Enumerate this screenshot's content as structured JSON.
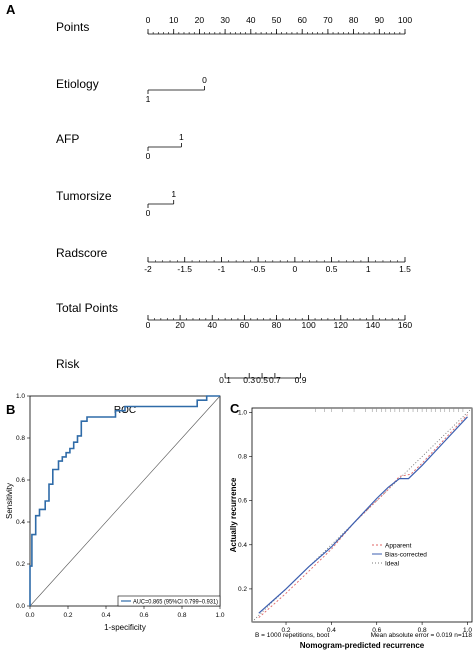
{
  "panels": {
    "a": "A",
    "b": "B",
    "c": "C"
  },
  "chart_data": [
    {
      "type": "nomogram",
      "rows": [
        {
          "label": "Points",
          "scale": "main",
          "ticks": [
            {
              "v": 0,
              "t": "0"
            },
            {
              "v": 10,
              "t": "10"
            },
            {
              "v": 20,
              "t": "20"
            },
            {
              "v": 30,
              "t": "30"
            },
            {
              "v": 40,
              "t": "40"
            },
            {
              "v": 50,
              "t": "50"
            },
            {
              "v": 60,
              "t": "60"
            },
            {
              "v": 70,
              "t": "70"
            },
            {
              "v": 80,
              "t": "80"
            },
            {
              "v": 90,
              "t": "90"
            },
            {
              "v": 100,
              "t": "100"
            }
          ]
        },
        {
          "label": "Etiology",
          "scale": "categorical",
          "levels": [
            {
              "level": "1",
              "points": 0
            },
            {
              "level": "0",
              "points": 22
            }
          ]
        },
        {
          "label": "AFP",
          "scale": "categorical",
          "levels": [
            {
              "level": "0",
              "points": 0
            },
            {
              "level": "1",
              "points": 13
            }
          ]
        },
        {
          "label": "Tumorsize",
          "scale": "categorical",
          "levels": [
            {
              "level": "0",
              "points": 0
            },
            {
              "level": "1",
              "points": 10
            }
          ]
        },
        {
          "label": "Radscore",
          "scale": "continuous",
          "ticks": [
            {
              "v": -2,
              "t": "-2",
              "points": 0
            },
            {
              "v": -1.5,
              "t": "-1.5",
              "points": 13.75
            },
            {
              "v": -1,
              "t": "-1",
              "points": 27.5
            },
            {
              "v": -0.5,
              "t": "-0.5",
              "points": 41.25
            },
            {
              "v": 0,
              "t": "0",
              "points": 55
            },
            {
              "v": 0.5,
              "t": "0.5",
              "points": 68.75
            },
            {
              "v": 1,
              "t": "1",
              "points": 82.5
            },
            {
              "v": 1.5,
              "t": "1.5",
              "points": 100
            }
          ]
        },
        {
          "label": "Total Points",
          "scale": "total",
          "ticks": [
            {
              "v": 0,
              "t": "0"
            },
            {
              "v": 20,
              "t": "20"
            },
            {
              "v": 40,
              "t": "40"
            },
            {
              "v": 60,
              "t": "60"
            },
            {
              "v": 80,
              "t": "80"
            },
            {
              "v": 100,
              "t": "100"
            },
            {
              "v": 120,
              "t": "120"
            },
            {
              "v": 140,
              "t": "140"
            },
            {
              "v": 160,
              "t": "160"
            }
          ]
        },
        {
          "label": "Risk",
          "scale": "risk",
          "ticks": [
            {
              "v": 0.1,
              "t": "0.1",
              "total": 48
            },
            {
              "v": 0.3,
              "t": "0.3",
              "total": 63
            },
            {
              "v": 0.5,
              "t": "0.5",
              "total": 71
            },
            {
              "v": 0.7,
              "t": "0.7",
              "total": 79
            },
            {
              "v": 0.9,
              "t": "0.9",
              "total": 95
            }
          ]
        }
      ]
    },
    {
      "type": "line",
      "title": "ROC",
      "xlabel": "1-specificity",
      "ylabel": "Sensitivity",
      "xlim": [
        0,
        1
      ],
      "ylim": [
        0,
        1
      ],
      "xticks": [
        "0.0",
        "0.2",
        "0.4",
        "0.6",
        "0.8",
        "1.0"
      ],
      "yticks": [
        "0.0",
        "0.2",
        "0.4",
        "0.6",
        "0.8",
        "1.0"
      ],
      "legend": "AUC=0.865 (95%CI 0.799~0.931)",
      "legend_position": "bottom-right",
      "curve": [
        [
          0,
          0
        ],
        [
          0,
          0.19
        ],
        [
          0.01,
          0.19
        ],
        [
          0.01,
          0.34
        ],
        [
          0.03,
          0.34
        ],
        [
          0.03,
          0.43
        ],
        [
          0.05,
          0.43
        ],
        [
          0.05,
          0.46
        ],
        [
          0.08,
          0.46
        ],
        [
          0.08,
          0.5
        ],
        [
          0.1,
          0.5
        ],
        [
          0.1,
          0.58
        ],
        [
          0.12,
          0.58
        ],
        [
          0.12,
          0.65
        ],
        [
          0.15,
          0.65
        ],
        [
          0.15,
          0.69
        ],
        [
          0.17,
          0.69
        ],
        [
          0.17,
          0.71
        ],
        [
          0.19,
          0.71
        ],
        [
          0.19,
          0.73
        ],
        [
          0.21,
          0.73
        ],
        [
          0.21,
          0.75
        ],
        [
          0.23,
          0.75
        ],
        [
          0.23,
          0.78
        ],
        [
          0.25,
          0.78
        ],
        [
          0.25,
          0.81
        ],
        [
          0.27,
          0.81
        ],
        [
          0.27,
          0.88
        ],
        [
          0.3,
          0.88
        ],
        [
          0.3,
          0.9
        ],
        [
          0.45,
          0.9
        ],
        [
          0.45,
          0.93
        ],
        [
          0.5,
          0.93
        ],
        [
          0.5,
          0.95
        ],
        [
          0.88,
          0.95
        ],
        [
          0.88,
          0.98
        ],
        [
          0.93,
          0.98
        ],
        [
          0.93,
          1.0
        ],
        [
          1.0,
          1.0
        ]
      ]
    },
    {
      "type": "line",
      "xlabel": "Nomogram-predicted recurrence",
      "ylabel": "Actually recurrence",
      "xlim": [
        0.05,
        1.02
      ],
      "ylim": [
        0.05,
        1.02
      ],
      "xticks": [
        {
          "v": 0.2,
          "t": "0.2"
        },
        {
          "v": 0.4,
          "t": "0.4"
        },
        {
          "v": 0.6,
          "t": "0.6"
        },
        {
          "v": 0.8,
          "t": "0.8"
        },
        {
          "v": 1.0,
          "t": "1.0"
        }
      ],
      "yticks": [
        {
          "v": 0.2,
          "t": "0.2"
        },
        {
          "v": 0.4,
          "t": "0.4"
        },
        {
          "v": 0.6,
          "t": "0.6"
        },
        {
          "v": 0.8,
          "t": "0.8"
        },
        {
          "v": 1.0,
          "t": "1.0"
        }
      ],
      "legend_position": "middle-right",
      "series": [
        {
          "name": "Apparent",
          "color": "#e06666",
          "dash": "2,2",
          "values": [
            [
              0.08,
              0.07
            ],
            [
              0.2,
              0.18
            ],
            [
              0.3,
              0.28
            ],
            [
              0.4,
              0.38
            ],
            [
              0.5,
              0.5
            ],
            [
              0.6,
              0.6
            ],
            [
              0.65,
              0.65
            ],
            [
              0.7,
              0.71
            ],
            [
              0.75,
              0.72
            ],
            [
              0.8,
              0.77
            ],
            [
              0.9,
              0.88
            ],
            [
              1.0,
              0.99
            ]
          ]
        },
        {
          "name": "Bias-corrected",
          "color": "#3c5fb0",
          "dash": "",
          "values": [
            [
              0.08,
              0.09
            ],
            [
              0.2,
              0.2
            ],
            [
              0.3,
              0.3
            ],
            [
              0.4,
              0.39
            ],
            [
              0.5,
              0.5
            ],
            [
              0.6,
              0.61
            ],
            [
              0.65,
              0.66
            ],
            [
              0.7,
              0.7
            ],
            [
              0.74,
              0.7
            ],
            [
              0.8,
              0.76
            ],
            [
              0.9,
              0.87
            ],
            [
              1.0,
              0.98
            ]
          ]
        },
        {
          "name": "Ideal",
          "color": "#777777",
          "dash": "1,2",
          "values": [
            [
              0.05,
              0.05
            ],
            [
              1.02,
              1.02
            ]
          ]
        }
      ],
      "footnote_left": "B = 1000 repetitions, boot",
      "footnote_right": "Mean absolute error = 0.019 n=118"
    }
  ]
}
